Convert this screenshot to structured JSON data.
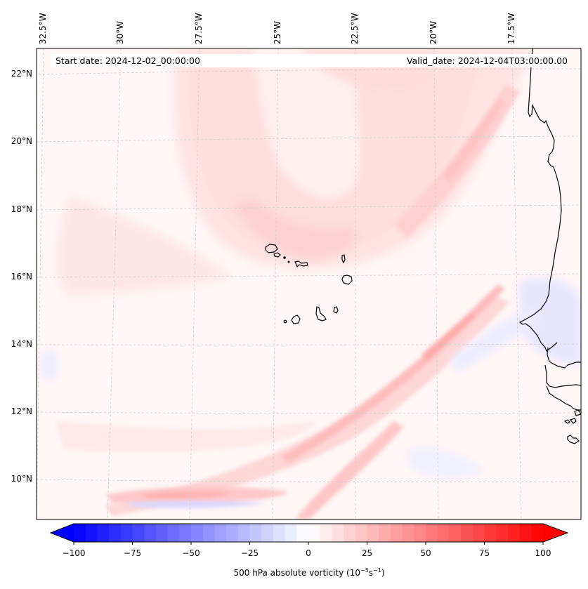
{
  "figure": {
    "start_date_label": "Start date: 2024-12-02_00:00:00",
    "valid_date_label": "Valid_date: 2024-12-04T03:00:00.00"
  },
  "map": {
    "projection": "Lambert conformal (gridlines curved)",
    "extent_description": "Eastern tropical Atlantic, Cape Verde Islands and Senegal/Mauritania coast",
    "lon_labels": [
      "32.5°W",
      "30°W",
      "27.5°W",
      "25°W",
      "22.5°W",
      "20°W",
      "17.5°W"
    ],
    "lat_labels": [
      "22°N",
      "20°N",
      "18°N",
      "16°N",
      "14°N",
      "12°N",
      "10°N"
    ],
    "gridlines": "dashed light gray",
    "coastline_color": "#000000",
    "features": [
      "Cape Verde Islands (Barlavento and Sotavento groups)",
      "West African coastline: Mauritania, Cap-Vert (Dakar), Senegal, Gambia, Guinea-Bissau with Bijagos islands"
    ]
  },
  "colorbar": {
    "min": -100,
    "max": 100,
    "step": 5,
    "extend": "both",
    "cmap": "bwr",
    "ticks": [
      "−100",
      "−75",
      "−50",
      "−25",
      "0",
      "25",
      "50",
      "75",
      "100"
    ],
    "tick_values": [
      -100,
      -75,
      -50,
      -25,
      0,
      25,
      50,
      75,
      100
    ],
    "label_main": "500 hPa absolute vorticity (10",
    "label_exp1": "−5",
    "label_mid": "s",
    "label_exp2": "−1",
    "label_end": ")",
    "low_color": "#0000ff",
    "mid_color": "#ffffff",
    "high_color": "#ff0000"
  },
  "chart_data": {
    "type": "heatmap",
    "title": "",
    "variable": "500 hPa absolute vorticity",
    "units": "10^-5 s^-1",
    "xlabel": "",
    "ylabel": "",
    "x_ticks": [
      "32.5°W",
      "30°W",
      "27.5°W",
      "25°W",
      "22.5°W",
      "20°W",
      "17.5°W"
    ],
    "y_ticks": [
      "22°N",
      "20°N",
      "18°N",
      "16°N",
      "14°N",
      "12°N",
      "10°N"
    ],
    "lon_range_deg": [
      -33,
      -16
    ],
    "lat_range_deg": [
      8.8,
      22.8
    ],
    "value_range": [
      -100,
      100
    ],
    "levels_step": 5,
    "features_estimated": [
      {
        "name": "broad positive vorticity arc around trough north of Cape Verde",
        "approx_value": 10,
        "lat": 19,
        "lon": -25
      },
      {
        "name": "max positive core near Cape Verde",
        "approx_value": 15,
        "lat": 17,
        "lon": -24
      },
      {
        "name": "SW-NE positive band toward Mauritania",
        "approx_value": 18,
        "lat": 19.5,
        "lon": -19.5
      },
      {
        "name": "strong SW-NE positive filament off Senegal",
        "approx_value": 30,
        "lat": 13.5,
        "lon": -20
      },
      {
        "name": "southern zonal positive streak",
        "approx_value": 22,
        "lat": 9.5,
        "lon": -28
      },
      {
        "name": "southern zonal negative streak",
        "approx_value": -15,
        "lat": 9.2,
        "lon": -28
      },
      {
        "name": "weak negative area near Senegal coast",
        "approx_value": -10,
        "lat": 14.5,
        "lon": -17.5
      },
      {
        "name": "background",
        "approx_value": 3
      }
    ]
  }
}
